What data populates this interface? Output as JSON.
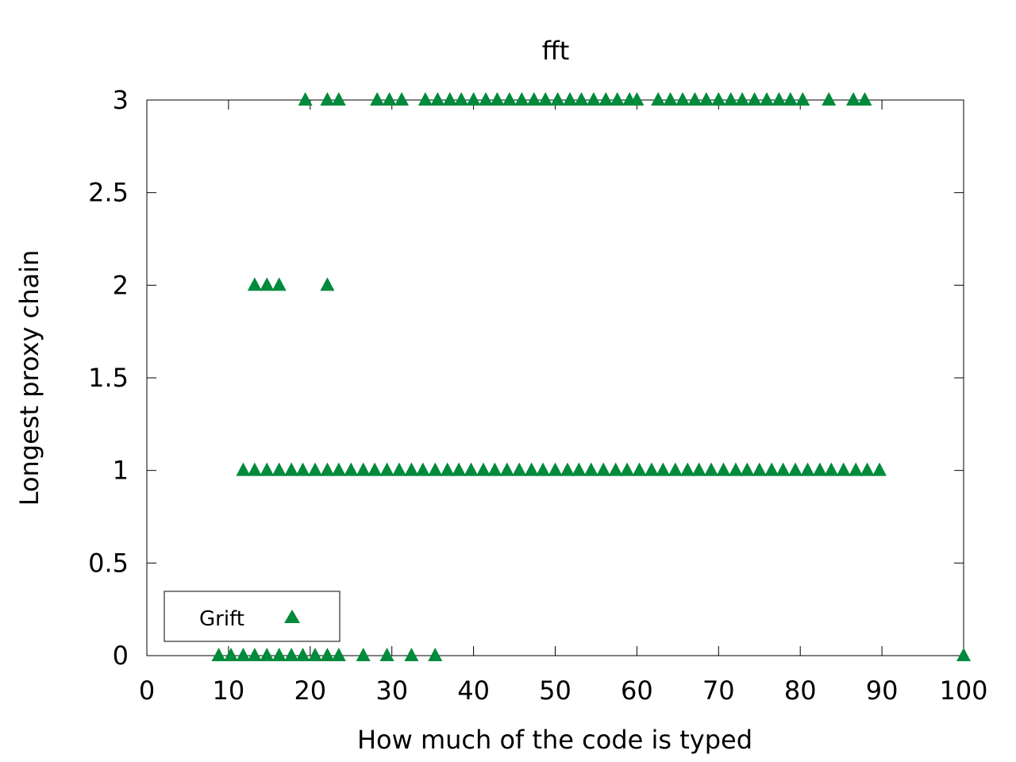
{
  "chart_data": {
    "type": "scatter",
    "title": "fft",
    "xlabel": "How much of the code is typed",
    "ylabel": "Longest proxy chain",
    "xlim": [
      0,
      100
    ],
    "ylim": [
      0,
      3
    ],
    "x_ticks": [
      "0",
      "10",
      "20",
      "30",
      "40",
      "50",
      "60",
      "70",
      "80",
      "90",
      "100"
    ],
    "x_tick_values": [
      0,
      10,
      20,
      30,
      40,
      50,
      60,
      70,
      80,
      90,
      100
    ],
    "y_ticks": [
      "0",
      "0.5",
      "1",
      "1.5",
      "2",
      "2.5",
      "3"
    ],
    "y_tick_values": [
      0,
      0.5,
      1,
      1.5,
      2,
      2.5,
      3
    ],
    "grid": false,
    "legend_position": "bottom-left",
    "series": [
      {
        "name": "Grift",
        "marker": "triangle",
        "color": "#008a3b",
        "points": [
          [
            8.8,
            0
          ],
          [
            10.3,
            0
          ],
          [
            11.8,
            0
          ],
          [
            13.2,
            0
          ],
          [
            14.7,
            0
          ],
          [
            16.2,
            0
          ],
          [
            17.7,
            0
          ],
          [
            19.1,
            0
          ],
          [
            20.6,
            0
          ],
          [
            22.1,
            0
          ],
          [
            23.5,
            0
          ],
          [
            26.5,
            0
          ],
          [
            29.4,
            0
          ],
          [
            32.4,
            0
          ],
          [
            35.3,
            0
          ],
          [
            100,
            0
          ],
          [
            11.8,
            1
          ],
          [
            13.2,
            1
          ],
          [
            14.7,
            1
          ],
          [
            16.2,
            1
          ],
          [
            17.7,
            1
          ],
          [
            19.1,
            1
          ],
          [
            20.6,
            1
          ],
          [
            22.1,
            1
          ],
          [
            23.5,
            1
          ],
          [
            25.0,
            1
          ],
          [
            26.5,
            1
          ],
          [
            27.9,
            1
          ],
          [
            29.4,
            1
          ],
          [
            30.9,
            1
          ],
          [
            32.4,
            1
          ],
          [
            33.8,
            1
          ],
          [
            35.3,
            1
          ],
          [
            36.8,
            1
          ],
          [
            38.2,
            1
          ],
          [
            39.7,
            1
          ],
          [
            41.2,
            1
          ],
          [
            42.6,
            1
          ],
          [
            44.1,
            1
          ],
          [
            45.6,
            1
          ],
          [
            47.1,
            1
          ],
          [
            48.5,
            1
          ],
          [
            50.0,
            1
          ],
          [
            51.5,
            1
          ],
          [
            52.9,
            1
          ],
          [
            54.4,
            1
          ],
          [
            55.9,
            1
          ],
          [
            57.4,
            1
          ],
          [
            58.8,
            1
          ],
          [
            60.3,
            1
          ],
          [
            61.8,
            1
          ],
          [
            63.2,
            1
          ],
          [
            64.7,
            1
          ],
          [
            66.2,
            1
          ],
          [
            67.6,
            1
          ],
          [
            69.1,
            1
          ],
          [
            70.6,
            1
          ],
          [
            72.1,
            1
          ],
          [
            73.5,
            1
          ],
          [
            75.0,
            1
          ],
          [
            76.5,
            1
          ],
          [
            77.9,
            1
          ],
          [
            79.4,
            1
          ],
          [
            80.9,
            1
          ],
          [
            82.4,
            1
          ],
          [
            83.8,
            1
          ],
          [
            85.3,
            1
          ],
          [
            86.8,
            1
          ],
          [
            88.2,
            1
          ],
          [
            89.7,
            1
          ],
          [
            13.2,
            2
          ],
          [
            14.7,
            2
          ],
          [
            16.2,
            2
          ],
          [
            22.1,
            2
          ],
          [
            19.4,
            3
          ],
          [
            22.1,
            3
          ],
          [
            23.5,
            3
          ],
          [
            28.2,
            3
          ],
          [
            29.7,
            3
          ],
          [
            31.2,
            3
          ],
          [
            34.1,
            3
          ],
          [
            35.6,
            3
          ],
          [
            37.1,
            3
          ],
          [
            38.5,
            3
          ],
          [
            40.0,
            3
          ],
          [
            41.5,
            3
          ],
          [
            42.9,
            3
          ],
          [
            44.4,
            3
          ],
          [
            45.9,
            3
          ],
          [
            47.4,
            3
          ],
          [
            48.8,
            3
          ],
          [
            50.3,
            3
          ],
          [
            51.8,
            3
          ],
          [
            53.2,
            3
          ],
          [
            54.7,
            3
          ],
          [
            56.2,
            3
          ],
          [
            57.6,
            3
          ],
          [
            59.1,
            3
          ],
          [
            60.0,
            3
          ],
          [
            62.6,
            3
          ],
          [
            64.1,
            3
          ],
          [
            65.6,
            3
          ],
          [
            67.1,
            3
          ],
          [
            68.5,
            3
          ],
          [
            70.0,
            3
          ],
          [
            71.5,
            3
          ],
          [
            72.9,
            3
          ],
          [
            74.4,
            3
          ],
          [
            75.9,
            3
          ],
          [
            77.4,
            3
          ],
          [
            78.8,
            3
          ],
          [
            80.3,
            3
          ],
          [
            83.5,
            3
          ],
          [
            86.5,
            3
          ],
          [
            87.9,
            3
          ]
        ]
      }
    ]
  }
}
